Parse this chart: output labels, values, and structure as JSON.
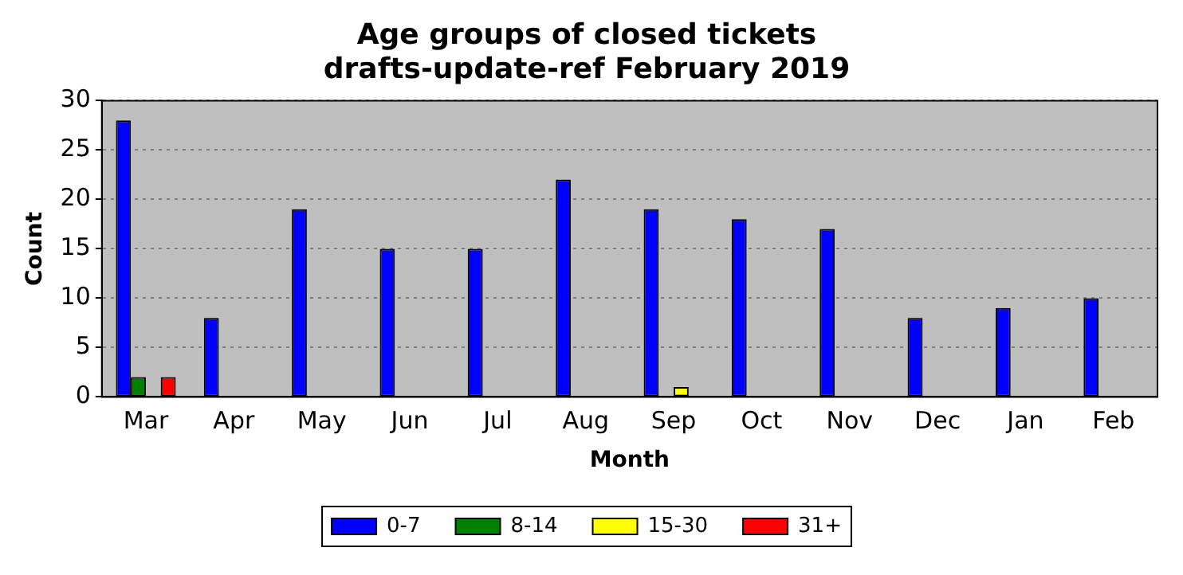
{
  "chart_data": {
    "type": "bar",
    "title": "Age groups of closed tickets",
    "subtitle": "drafts-update-ref February 2019",
    "xlabel": "Month",
    "ylabel": "Count",
    "categories": [
      "Mar",
      "Apr",
      "May",
      "Jun",
      "Jul",
      "Aug",
      "Sep",
      "Oct",
      "Nov",
      "Dec",
      "Jan",
      "Feb"
    ],
    "series": [
      {
        "name": "0-7",
        "color": "#0000ff",
        "values": [
          28,
          8,
          19,
          15,
          15,
          22,
          19,
          18,
          17,
          8,
          9,
          10
        ]
      },
      {
        "name": "8-14",
        "color": "#008000",
        "values": [
          2,
          0,
          0,
          0,
          0,
          0,
          0,
          0,
          0,
          0,
          0,
          0
        ]
      },
      {
        "name": "15-30",
        "color": "#ffff00",
        "values": [
          0,
          0,
          0,
          0,
          0,
          0,
          1,
          0,
          0,
          0,
          0,
          0
        ]
      },
      {
        "name": "31+",
        "color": "#ff0000",
        "values": [
          2,
          0,
          0,
          0,
          0,
          0,
          0,
          0,
          0,
          0,
          0,
          0
        ]
      }
    ],
    "ylim": [
      0,
      30
    ],
    "yticks": [
      0,
      5,
      10,
      15,
      20,
      25,
      30
    ],
    "grid": "y",
    "legend": "bottom"
  }
}
